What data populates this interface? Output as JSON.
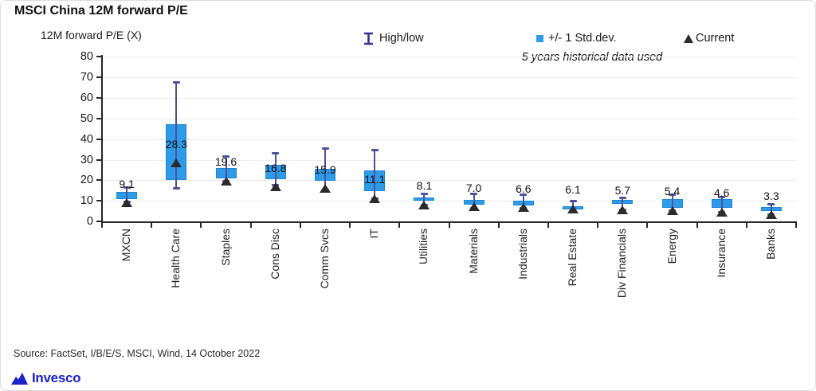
{
  "title": "MSCI China 12M forward P/E",
  "axis_title": "12M forward P/E (X)",
  "note": "5 years historical data used",
  "legend": {
    "high_low_label": "High/low",
    "std_dev_label": "+/- 1 Std.dev.",
    "current_label": "Current"
  },
  "source": "Source: FactSet, I/B/E/S, MSCI, Wind, 14 October 2022",
  "logo_text": "Invesco",
  "colors": {
    "box": "#2E9BE8",
    "box_border": "#1E86D8",
    "whisker": "#4D5399",
    "legend_icon": "#32339B",
    "current": "#2b2b2b",
    "grid": "#ececec",
    "axis": "#262626",
    "logo_blue": "#1c23c8"
  },
  "chart_data": {
    "type": "box-whisker",
    "title": "MSCI China 12M forward P/E",
    "ylabel": "12M forward P/E (X)",
    "ylim": [
      0,
      80
    ],
    "ytick_step": 10,
    "grid": true,
    "note": "5 years historical data used",
    "categories": [
      "MXCN",
      "Health Care",
      "Staples",
      "Cons Disc",
      "Comm Svcs",
      "IT",
      "Utilities",
      "Materials",
      "Industrials",
      "Real Estate",
      "Div Financials",
      "Energy",
      "Insurance",
      "Banks"
    ],
    "series": [
      {
        "name": "High/low",
        "high": [
          16.5,
          67.5,
          31.5,
          33.0,
          35.5,
          34.5,
          13.3,
          13.2,
          12.9,
          9.7,
          11.5,
          12.9,
          12.0,
          8.5
        ],
        "low": [
          9.5,
          16.0,
          19.5,
          17.5,
          15.5,
          11.0,
          7.8,
          6.5,
          6.5,
          5.0,
          5.5,
          5.2,
          4.5,
          3.2
        ]
      },
      {
        "name": "+/- 1 Std.dev.",
        "top": [
          14.3,
          47.3,
          26.0,
          27.5,
          25.5,
          24.8,
          11.6,
          10.3,
          10.1,
          7.5,
          10.6,
          11.0,
          11.0,
          6.8
        ],
        "bottom": [
          11.0,
          20.0,
          20.7,
          20.5,
          19.6,
          14.5,
          10.0,
          8.0,
          7.8,
          5.8,
          8.4,
          6.7,
          6.7,
          5.0
        ]
      },
      {
        "name": "Current",
        "values": [
          9.1,
          28.3,
          19.6,
          16.8,
          15.9,
          11.1,
          8.1,
          7.0,
          6.6,
          6.1,
          5.7,
          5.4,
          4.6,
          3.3
        ]
      }
    ]
  }
}
